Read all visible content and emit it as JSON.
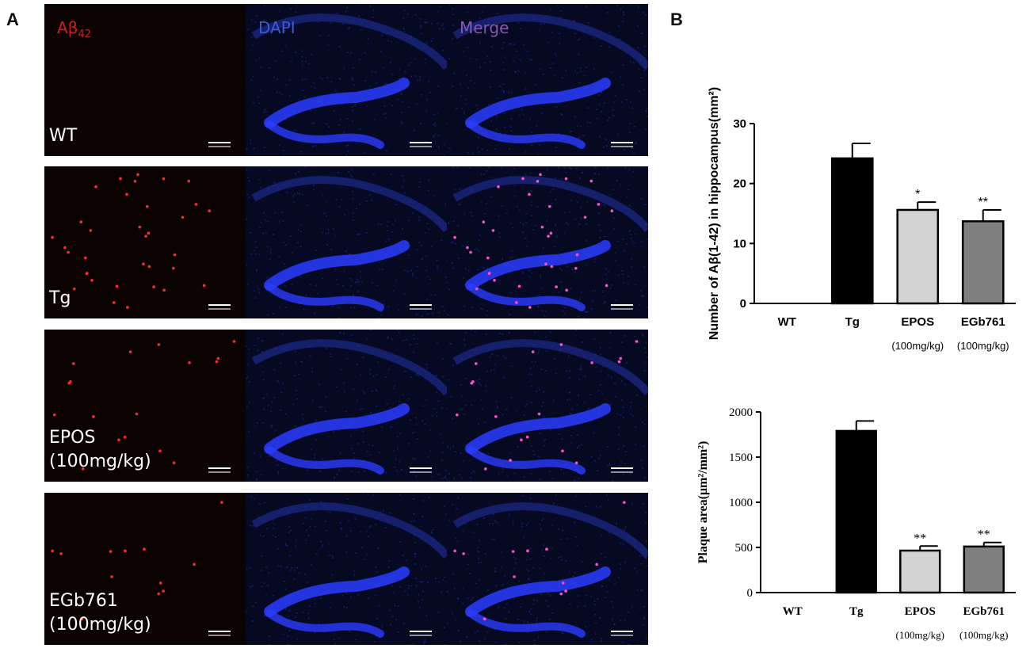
{
  "panel_a": {
    "letter": "A",
    "channels": [
      {
        "label": "Aβ",
        "sub": "42",
        "color": "#d21a1a"
      },
      {
        "label": "DAPI",
        "color": "#3a5bd6"
      },
      {
        "label": "Merge",
        "color": "#8a57b5"
      }
    ],
    "rows": [
      {
        "group": [
          "WT"
        ],
        "dots_a": 0
      },
      {
        "group": [
          "Tg"
        ],
        "dots_a": 34
      },
      {
        "group": [
          "EPOS",
          "(100mg/kg)"
        ],
        "dots_a": 18
      },
      {
        "group": [
          "EGb761",
          "(100mg/kg)"
        ],
        "dots_a": 12
      }
    ]
  },
  "panel_b": {
    "letter": "B"
  },
  "chart_data": [
    {
      "type": "bar",
      "ylabel": "Number of Aβ(1-42) in hippocampus(mm²)",
      "categories": [
        "WT",
        "Tg",
        "EPOS",
        "EGb761"
      ],
      "category_sublabels": [
        "",
        "",
        "(100mg/kg)",
        "(100mg/kg)"
      ],
      "values": [
        0,
        24.2,
        15.6,
        13.7
      ],
      "errors": [
        0,
        2.5,
        1.3,
        1.9
      ],
      "significance": [
        "",
        "",
        "*",
        "**"
      ],
      "bar_colors": [
        "#000000",
        "#000000",
        "#d3d3d3",
        "#7f7f7f"
      ],
      "ylim": [
        0,
        30
      ],
      "yticks": [
        0,
        10,
        20,
        30
      ],
      "grid": false
    },
    {
      "type": "bar",
      "ylabel": "Plaque area(μm²/mm²)",
      "categories": [
        "WT",
        "Tg",
        "EPOS",
        "EGb761"
      ],
      "category_sublabels": [
        "",
        "",
        "(100mg/kg)",
        "(100mg/kg)"
      ],
      "values": [
        0,
        1790,
        465,
        510
      ],
      "errors": [
        0,
        110,
        50,
        45
      ],
      "significance": [
        "",
        "",
        "**",
        "**"
      ],
      "bar_colors": [
        "#000000",
        "#000000",
        "#d3d3d3",
        "#7f7f7f"
      ],
      "ylim": [
        0,
        2000
      ],
      "yticks": [
        0,
        500,
        1000,
        1500,
        2000
      ],
      "grid": false
    }
  ]
}
